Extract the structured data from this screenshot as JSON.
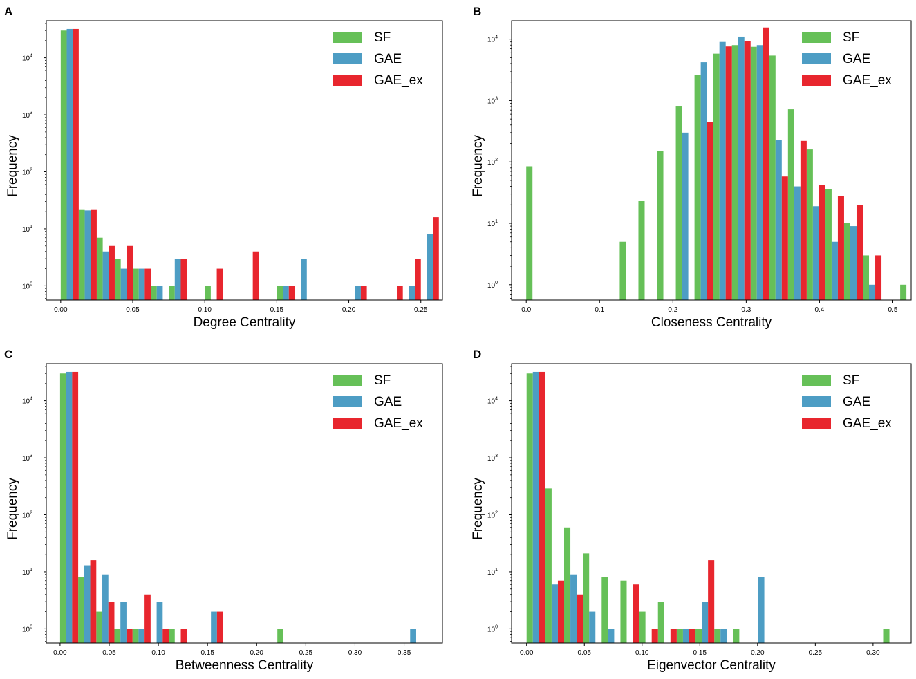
{
  "figure": {
    "colors": {
      "SF": "#66c058",
      "GAE": "#4d9dc4",
      "GAE_ex": "#e8262e"
    }
  },
  "chart_data": [
    {
      "panel": "A",
      "type": "bar",
      "scale": "log",
      "xlabel": "Degree Centrality",
      "ylabel": "Frequency",
      "xlim": [
        -0.01,
        0.265
      ],
      "ylog": [
        -0.25,
        4.65
      ],
      "xticks": [
        0.0,
        0.05,
        0.1,
        0.15,
        0.2,
        0.25
      ],
      "xtick_labels": [
        "0.00",
        "0.05",
        "0.10",
        "0.15",
        "0.20",
        "0.25"
      ],
      "ytick_exps": [
        0,
        1,
        2,
        3,
        4
      ],
      "bin_width": 0.0125,
      "bin_start": 0.0,
      "series": [
        {
          "name": "SF",
          "values": [
            30000,
            22,
            7,
            3,
            2,
            1,
            1,
            0,
            1,
            0,
            0,
            0,
            1,
            0,
            0,
            0,
            0,
            0,
            0,
            0,
            0
          ]
        },
        {
          "name": "GAE",
          "values": [
            32000,
            21,
            4,
            2,
            2,
            1,
            3,
            0,
            0,
            0,
            0,
            0,
            1,
            3,
            0,
            0,
            1,
            0,
            0,
            1,
            8
          ]
        },
        {
          "name": "GAE_ex",
          "values": [
            32000,
            22,
            5,
            5,
            2,
            0,
            3,
            0,
            2,
            0,
            4,
            0,
            1,
            0,
            0,
            0,
            1,
            0,
            1,
            3,
            16
          ]
        }
      ],
      "legend": [
        "SF",
        "GAE",
        "GAE_ex"
      ]
    },
    {
      "panel": "B",
      "type": "bar",
      "scale": "log",
      "xlabel": "Closeness Centrality",
      "ylabel": "Frequency",
      "xlim": [
        -0.02,
        0.525
      ],
      "ylog": [
        -0.25,
        4.3
      ],
      "xticks": [
        0.0,
        0.1,
        0.2,
        0.3,
        0.4,
        0.5
      ],
      "xtick_labels": [
        "0.0",
        "0.1",
        "0.2",
        "0.3",
        "0.4",
        "0.5"
      ],
      "ytick_exps": [
        0,
        1,
        2,
        3,
        4
      ],
      "bin_width": 0.0255,
      "bin_start": 0.0,
      "series": [
        {
          "name": "SF",
          "values": [
            85,
            0,
            0,
            0,
            0,
            5,
            23,
            150,
            800,
            2600,
            5800,
            8000,
            7500,
            5400,
            720,
            160,
            36,
            10,
            3,
            0,
            1
          ]
        },
        {
          "name": "GAE",
          "values": [
            0,
            0,
            0,
            0,
            0,
            0,
            0,
            0,
            300,
            4200,
            9000,
            11000,
            8000,
            230,
            40,
            19,
            5,
            9,
            1,
            0,
            0
          ]
        },
        {
          "name": "GAE_ex",
          "values": [
            0,
            0,
            0,
            0,
            0,
            0,
            0,
            0,
            0,
            450,
            7600,
            9200,
            15500,
            58,
            220,
            42,
            28,
            20,
            3,
            0,
            0
          ]
        }
      ],
      "legend": [
        "SF",
        "GAE",
        "GAE_ex"
      ]
    },
    {
      "panel": "C",
      "type": "bar",
      "scale": "log",
      "xlabel": "Betweenness Centrality",
      "ylabel": "Frequency",
      "xlim": [
        -0.014,
        0.389
      ],
      "ylog": [
        -0.25,
        4.65
      ],
      "xticks": [
        0.0,
        0.05,
        0.1,
        0.15,
        0.2,
        0.25,
        0.3,
        0.35
      ],
      "xtick_labels": [
        "0.00",
        "0.05",
        "0.10",
        "0.15",
        "0.20",
        "0.25",
        "0.30",
        "0.35"
      ],
      "ytick_exps": [
        0,
        1,
        2,
        3,
        4
      ],
      "bin_width": 0.01842,
      "bin_start": 0.0,
      "series": [
        {
          "name": "SF",
          "values": [
            30000,
            8,
            2,
            1,
            1,
            0,
            1,
            0,
            0,
            0,
            0,
            0,
            1,
            0,
            0,
            0,
            0,
            0,
            0,
            0
          ]
        },
        {
          "name": "GAE",
          "values": [
            32000,
            13,
            9,
            3,
            1,
            3,
            0,
            0,
            2,
            0,
            0,
            0,
            0,
            0,
            0,
            0,
            0,
            0,
            0,
            1
          ]
        },
        {
          "name": "GAE_ex",
          "values": [
            32000,
            16,
            3,
            1,
            4,
            1,
            1,
            0,
            2,
            0,
            0,
            0,
            0,
            0,
            0,
            0,
            0,
            0,
            0,
            0
          ]
        }
      ],
      "legend": [
        "SF",
        "GAE",
        "GAE_ex"
      ]
    },
    {
      "panel": "D",
      "type": "bar",
      "scale": "log",
      "xlabel": "Eigenvector Centrality",
      "ylabel": "Frequency",
      "xlim": [
        -0.013,
        0.333
      ],
      "ylog": [
        -0.25,
        4.65
      ],
      "xticks": [
        0.0,
        0.05,
        0.1,
        0.15,
        0.2,
        0.25,
        0.3
      ],
      "xtick_labels": [
        "0.00",
        "0.05",
        "0.10",
        "0.15",
        "0.20",
        "0.25",
        "0.30"
      ],
      "ytick_exps": [
        0,
        1,
        2,
        3,
        4
      ],
      "bin_width": 0.01625,
      "bin_start": 0.0,
      "series": [
        {
          "name": "SF",
          "values": [
            30000,
            290,
            60,
            21,
            8,
            7,
            2,
            3,
            1,
            1,
            1,
            1,
            0,
            0,
            0,
            0,
            0,
            0,
            0,
            1
          ]
        },
        {
          "name": "GAE",
          "values": [
            32000,
            6,
            9,
            2,
            1,
            0,
            0,
            0,
            1,
            3,
            1,
            0,
            8,
            0,
            0,
            0,
            0,
            0,
            0,
            0
          ]
        },
        {
          "name": "GAE_ex",
          "values": [
            32000,
            7,
            4,
            0,
            0,
            6,
            1,
            1,
            1,
            16,
            0,
            0,
            0,
            0,
            0,
            0,
            0,
            0,
            0,
            0
          ]
        }
      ],
      "legend": [
        "SF",
        "GAE",
        "GAE_ex"
      ]
    }
  ]
}
